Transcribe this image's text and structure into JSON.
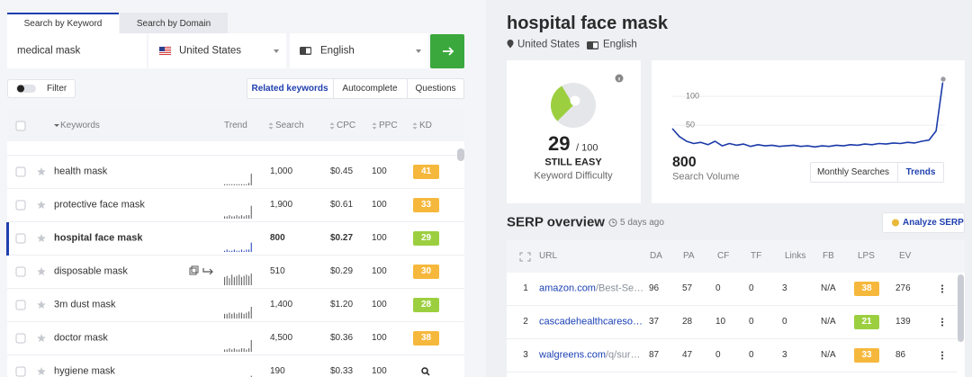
{
  "search_panel": {
    "tabs": [
      "Search by Keyword",
      "Search by Domain"
    ],
    "active_tab": 0,
    "keyword": "medical mask",
    "location": "United States",
    "language": "English",
    "filter": "Filter",
    "modes": [
      "Related keywords",
      "Autocomplete",
      "Questions"
    ],
    "active_mode": 0,
    "columns": [
      "Keywords",
      "Trend",
      "Search",
      "CPC",
      "PPC",
      "KD"
    ],
    "selected_row": 2,
    "rows": [
      {
        "keyword": "health mask",
        "trend": [
          1,
          1,
          1,
          1,
          1,
          1,
          1,
          1,
          1,
          1,
          2,
          10
        ],
        "search": "1,000",
        "cpc": "$0.45",
        "ppc": 100,
        "kd": 41,
        "kd_color": "#f6b83c"
      },
      {
        "keyword": "protective face mask",
        "trend": [
          2,
          2,
          3,
          2,
          2,
          3,
          2,
          3,
          2,
          3,
          3,
          11
        ],
        "search": "1,900",
        "cpc": "$0.61",
        "ppc": 100,
        "kd": 33,
        "kd_color": "#f6b83c"
      },
      {
        "keyword": "hospital face mask",
        "trend": [
          1,
          2,
          1,
          1,
          2,
          1,
          1,
          2,
          1,
          2,
          2,
          8
        ],
        "search": "800",
        "cpc": "$0.27",
        "ppc": 100,
        "kd": 29,
        "kd_color": "#9ccf3f"
      },
      {
        "keyword": "disposable mask",
        "trend": [
          7,
          8,
          6,
          9,
          7,
          8,
          9,
          7,
          8,
          9,
          8,
          10
        ],
        "search": "510",
        "cpc": "$0.29",
        "ppc": 100,
        "kd": 30,
        "kd_color": "#f6b83c"
      },
      {
        "keyword": "3m dust mask",
        "trend": [
          4,
          4,
          5,
          4,
          5,
          4,
          5,
          5,
          4,
          5,
          6,
          10
        ],
        "search": "1,400",
        "cpc": "$1.20",
        "ppc": 100,
        "kd": 28,
        "kd_color": "#9ccf3f"
      },
      {
        "keyword": "doctor mask",
        "trend": [
          2,
          2,
          3,
          2,
          3,
          2,
          2,
          3,
          3,
          2,
          3,
          10
        ],
        "search": "4,500",
        "cpc": "$0.36",
        "ppc": 100,
        "kd": 38,
        "kd_color": "#f6b83c"
      },
      {
        "keyword": "hygiene mask",
        "trend": [
          1,
          1,
          1,
          1,
          1,
          1,
          1,
          1,
          1,
          1,
          2,
          8
        ],
        "search": "190",
        "cpc": "$0.33",
        "ppc": 100
      }
    ]
  },
  "keyword_panel": {
    "title": "hospital face mask",
    "location": "United States",
    "language": "English",
    "difficulty": {
      "score": 29,
      "max": {
        "value": 100,
        "label": "/ 100"
      },
      "label": "STILL EASY",
      "caption": "Keyword Difficulty",
      "color": "#9ccf3f"
    },
    "volume": {
      "value": 800,
      "caption": "Search Volume",
      "buttons": [
        "Monthly Searches",
        "Trends"
      ],
      "active_button": 1,
      "chart": {
        "type": "line",
        "color": "#1a3aa8",
        "ylim": [
          0,
          130
        ],
        "yticks": [
          50,
          100
        ],
        "values": [
          44,
          30,
          22,
          18,
          20,
          16,
          22,
          14,
          18,
          15,
          17,
          13,
          16,
          14,
          15,
          13,
          14,
          15,
          13,
          14,
          12,
          14,
          13,
          15,
          14,
          16,
          15,
          17,
          16,
          18,
          17,
          19,
          18,
          20,
          19,
          22,
          24,
          40,
          130
        ]
      }
    }
  },
  "serp": {
    "title": "SERP overview",
    "updated": "5 days ago",
    "button": "Analyze SERP",
    "columns": [
      "URL",
      "DA",
      "PA",
      "CF",
      "TF",
      "Links",
      "FB",
      "LPS",
      "EV"
    ],
    "rows": [
      {
        "rank": 1,
        "domain": "amazon.com",
        "path": "/Best-Se…",
        "da": 96,
        "pa": 57,
        "cf": 0,
        "tf": 0,
        "links": 3,
        "fb": "N/A",
        "lps": 38,
        "lps_color": "#f6b83c",
        "ev": 276
      },
      {
        "rank": 2,
        "domain": "cascadehealthcareso…",
        "da": 37,
        "pa": 28,
        "cf": 10,
        "tf": 0,
        "links": 0,
        "fb": "N/A",
        "lps": 21,
        "lps_color": "#9ccf3f",
        "ev": 139
      },
      {
        "rank": 3,
        "domain": "walgreens.com",
        "path": "/q/sur…",
        "da": 87,
        "pa": 47,
        "cf": 0,
        "tf": 0,
        "links": 3,
        "fb": "N/A",
        "lps": 33,
        "lps_color": "#f6b83c",
        "ev": 86
      }
    ]
  }
}
